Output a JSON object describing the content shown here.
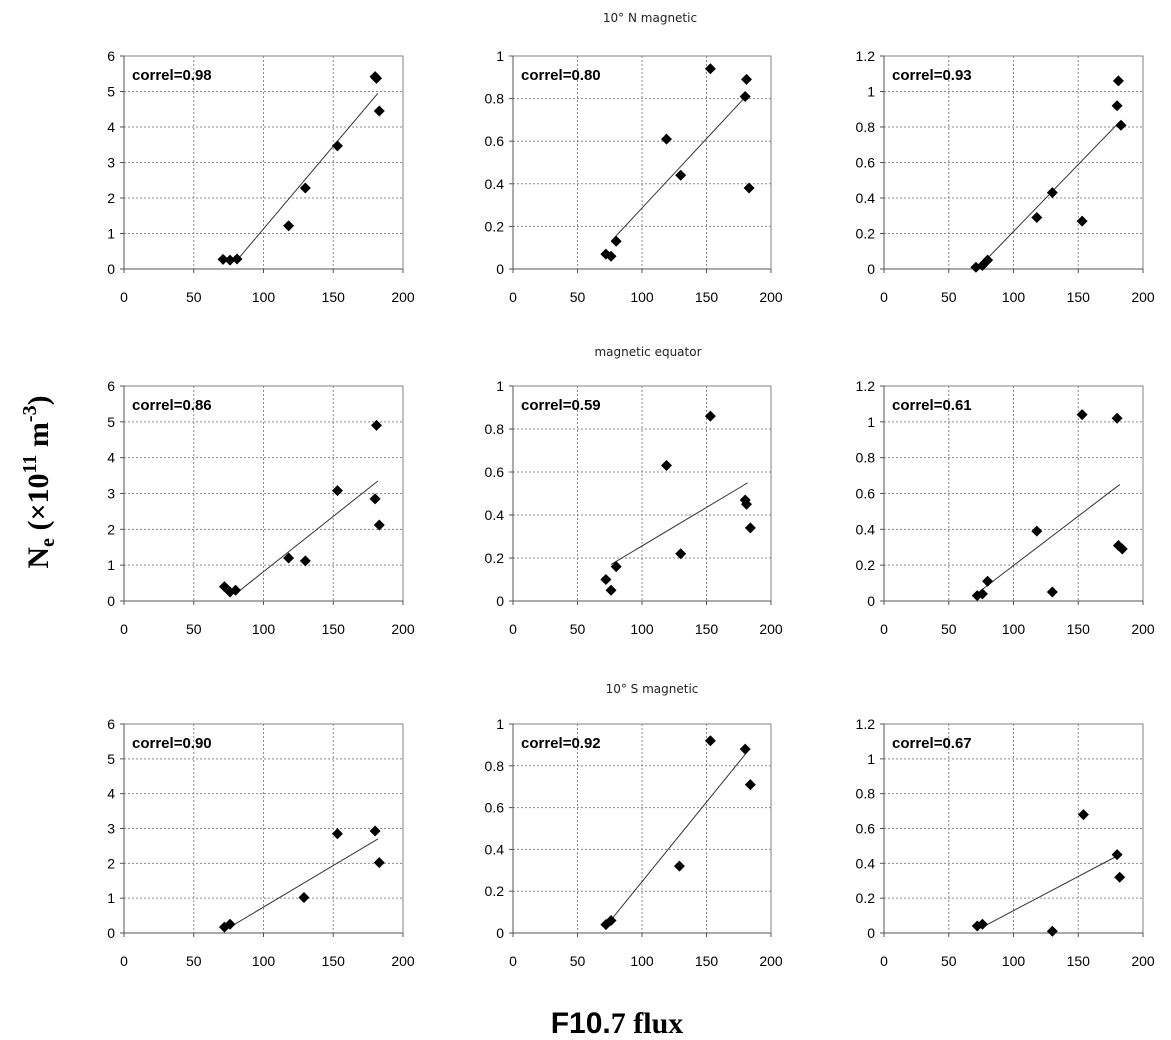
{
  "figure": {
    "row_titles": [
      "10° N magnetic",
      "magnetic equator",
      "10° S magnetic"
    ],
    "y_label_main": "N",
    "y_label_sub": "e",
    "y_label_rest_open": " (×10",
    "y_label_exp": "11",
    "y_label_unit": " m",
    "y_label_unit_exp": "-3",
    "y_label_close": ")",
    "x_label_part1": "F10.",
    "x_label_part2": "7 flux"
  },
  "chart_data": [
    {
      "type": "scatter",
      "row": 0,
      "col": 0,
      "annotation": "correl=0.98",
      "xlim": [
        0,
        200
      ],
      "ylim": [
        0,
        6
      ],
      "xticks": [
        0,
        50,
        100,
        150,
        200
      ],
      "yticks": [
        0,
        1,
        2,
        3,
        4,
        5,
        6
      ],
      "grid": true,
      "marker": "diamond",
      "points": [
        [
          71,
          0.27
        ],
        [
          76,
          0.25
        ],
        [
          81,
          0.28
        ],
        [
          118,
          1.22
        ],
        [
          130,
          2.28
        ],
        [
          153,
          3.47
        ],
        [
          180,
          5.42
        ],
        [
          181,
          5.37
        ],
        [
          183,
          4.45
        ]
      ],
      "trendline": [
        [
          80,
          0.2
        ],
        [
          182,
          4.95
        ]
      ]
    },
    {
      "type": "scatter",
      "row": 0,
      "col": 1,
      "annotation": "correl=0.80",
      "xlim": [
        0,
        200
      ],
      "ylim": [
        0,
        1
      ],
      "xticks": [
        0,
        50,
        100,
        150,
        200
      ],
      "yticks": [
        0,
        0.2,
        0.4,
        0.6,
        0.8,
        1
      ],
      "grid": true,
      "marker": "diamond",
      "points": [
        [
          72,
          0.07
        ],
        [
          76,
          0.06
        ],
        [
          80,
          0.13
        ],
        [
          119,
          0.61
        ],
        [
          130,
          0.44
        ],
        [
          153,
          0.94
        ],
        [
          180,
          0.81
        ],
        [
          181,
          0.89
        ],
        [
          183,
          0.38
        ]
      ],
      "trendline": [
        [
          76,
          0.13
        ],
        [
          182,
          0.82
        ]
      ]
    },
    {
      "type": "scatter",
      "row": 0,
      "col": 2,
      "annotation": "correl=0.93",
      "xlim": [
        0,
        200
      ],
      "ylim": [
        0,
        1.2
      ],
      "xticks": [
        0,
        50,
        100,
        150,
        200
      ],
      "yticks": [
        0,
        0.2,
        0.4,
        0.6,
        0.8,
        1,
        1.2
      ],
      "grid": true,
      "marker": "diamond",
      "points": [
        [
          71,
          0.01
        ],
        [
          76,
          0.02
        ],
        [
          80,
          0.05
        ],
        [
          118,
          0.29
        ],
        [
          130,
          0.43
        ],
        [
          153,
          0.27
        ],
        [
          180,
          0.92
        ],
        [
          181,
          1.06
        ],
        [
          183,
          0.81
        ]
      ],
      "trendline": [
        [
          72,
          0.0
        ],
        [
          182,
          0.83
        ]
      ]
    },
    {
      "type": "scatter",
      "row": 1,
      "col": 0,
      "annotation": "correl=0.86",
      "xlim": [
        0,
        200
      ],
      "ylim": [
        0,
        6
      ],
      "xticks": [
        0,
        50,
        100,
        150,
        200
      ],
      "yticks": [
        0,
        1,
        2,
        3,
        4,
        5,
        6
      ],
      "grid": true,
      "marker": "diamond",
      "points": [
        [
          72,
          0.4
        ],
        [
          76,
          0.25
        ],
        [
          80,
          0.3
        ],
        [
          118,
          1.2
        ],
        [
          130,
          1.12
        ],
        [
          153,
          3.08
        ],
        [
          180,
          2.85
        ],
        [
          181,
          4.9
        ],
        [
          183,
          2.12
        ]
      ],
      "trendline": [
        [
          80,
          0.2
        ],
        [
          182,
          3.35
        ]
      ]
    },
    {
      "type": "scatter",
      "row": 1,
      "col": 1,
      "annotation": "correl=0.59",
      "xlim": [
        0,
        200
      ],
      "ylim": [
        0,
        1
      ],
      "xticks": [
        0,
        50,
        100,
        150,
        200
      ],
      "yticks": [
        0,
        0.2,
        0.4,
        0.6,
        0.8,
        1
      ],
      "grid": true,
      "marker": "diamond",
      "points": [
        [
          72,
          0.1
        ],
        [
          76,
          0.05
        ],
        [
          80,
          0.16
        ],
        [
          119,
          0.63
        ],
        [
          130,
          0.22
        ],
        [
          153,
          0.86
        ],
        [
          180,
          0.47
        ],
        [
          181,
          0.45
        ],
        [
          184,
          0.34
        ]
      ],
      "trendline": [
        [
          76,
          0.17
        ],
        [
          182,
          0.55
        ]
      ]
    },
    {
      "type": "scatter",
      "row": 1,
      "col": 2,
      "annotation": "correl=0.61",
      "xlim": [
        0,
        200
      ],
      "ylim": [
        0,
        1.2
      ],
      "xticks": [
        0,
        50,
        100,
        150,
        200
      ],
      "yticks": [
        0,
        0.2,
        0.4,
        0.6,
        0.8,
        1,
        1.2
      ],
      "grid": true,
      "marker": "diamond",
      "points": [
        [
          72,
          0.03
        ],
        [
          76,
          0.04
        ],
        [
          80,
          0.11
        ],
        [
          118,
          0.39
        ],
        [
          130,
          0.05
        ],
        [
          153,
          1.04
        ],
        [
          180,
          1.02
        ],
        [
          181,
          0.31
        ],
        [
          184,
          0.29
        ]
      ],
      "trendline": [
        [
          75,
          0.06
        ],
        [
          182,
          0.65
        ]
      ]
    },
    {
      "type": "scatter",
      "row": 2,
      "col": 0,
      "annotation": "correl=0.90",
      "xlim": [
        0,
        200
      ],
      "ylim": [
        0,
        6
      ],
      "xticks": [
        0,
        50,
        100,
        150,
        200
      ],
      "yticks": [
        0,
        1,
        2,
        3,
        4,
        5,
        6
      ],
      "grid": true,
      "marker": "diamond",
      "points": [
        [
          72,
          0.17
        ],
        [
          76,
          0.25
        ],
        [
          129,
          1.02
        ],
        [
          153,
          2.85
        ],
        [
          180,
          2.93
        ],
        [
          183,
          2.02
        ]
      ],
      "trendline": [
        [
          73,
          0.1
        ],
        [
          182,
          2.7
        ]
      ]
    },
    {
      "type": "scatter",
      "row": 2,
      "col": 1,
      "annotation": "correl=0.92",
      "xlim": [
        0,
        200
      ],
      "ylim": [
        0,
        1
      ],
      "xticks": [
        0,
        50,
        100,
        150,
        200
      ],
      "yticks": [
        0,
        0.2,
        0.4,
        0.6,
        0.8,
        1
      ],
      "grid": true,
      "marker": "diamond",
      "points": [
        [
          72,
          0.04
        ],
        [
          76,
          0.06
        ],
        [
          129,
          0.32
        ],
        [
          153,
          0.92
        ],
        [
          180,
          0.88
        ],
        [
          184,
          0.71
        ]
      ],
      "trendline": [
        [
          73,
          0.04
        ],
        [
          182,
          0.87
        ]
      ]
    },
    {
      "type": "scatter",
      "row": 2,
      "col": 2,
      "annotation": "correl=0.67",
      "xlim": [
        0,
        200
      ],
      "ylim": [
        0,
        1.2
      ],
      "xticks": [
        0,
        50,
        100,
        150,
        200
      ],
      "yticks": [
        0,
        0.2,
        0.4,
        0.6,
        0.8,
        1,
        1.2
      ],
      "grid": true,
      "marker": "diamond",
      "points": [
        [
          72,
          0.04
        ],
        [
          76,
          0.05
        ],
        [
          130,
          0.01
        ],
        [
          154,
          0.68
        ],
        [
          180,
          0.45
        ],
        [
          182,
          0.32
        ]
      ],
      "trendline": [
        [
          75,
          0.03
        ],
        [
          182,
          0.45
        ]
      ]
    }
  ]
}
